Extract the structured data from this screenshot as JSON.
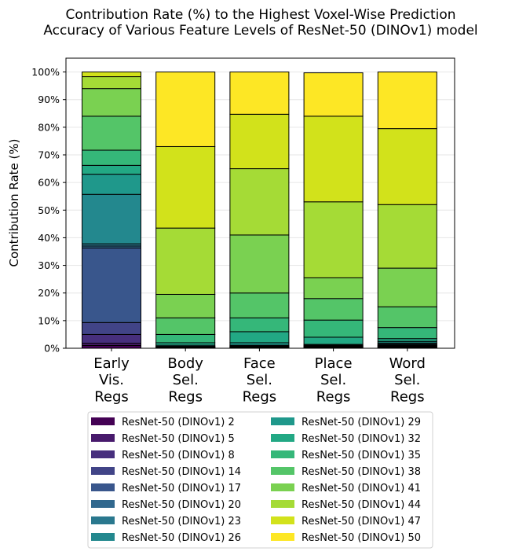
{
  "chart_data": {
    "type": "stacked_bar",
    "title": "Contribution Rate (%) to the Highest Voxel-Wise Prediction\nAccuracy of Various Feature Levels of ResNet-50 (DINOv1) model",
    "y_label": "Contribution Rate (%)",
    "categories": [
      "Early\nVis.\nRegs",
      "Body\nSel.\nRegs",
      "Face\nSel.\nRegs",
      "Place\nSel.\nRegs",
      "Word\nSel.\nRegs"
    ],
    "ylim": [
      0,
      105
    ],
    "yticks": [
      {
        "value": 0,
        "label": "0%"
      },
      {
        "value": 10,
        "label": "10%"
      },
      {
        "value": 20,
        "label": "20%"
      },
      {
        "value": 30,
        "label": "30%"
      },
      {
        "value": 40,
        "label": "40%"
      },
      {
        "value": 50,
        "label": "50%"
      },
      {
        "value": 60,
        "label": "60%"
      },
      {
        "value": 70,
        "label": "70%"
      },
      {
        "value": 80,
        "label": "80%"
      },
      {
        "value": 90,
        "label": "90%"
      },
      {
        "value": 100,
        "label": "100%"
      }
    ],
    "grid": true,
    "series": [
      {
        "name": "ResNet-50 (DINOv1) 2",
        "color": "#440154",
        "values": [
          1.0,
          0,
          0,
          0,
          0.2
        ]
      },
      {
        "name": "ResNet-50 (DINOv1) 5",
        "color": "#481a6c",
        "values": [
          0.8,
          0,
          0,
          0.1,
          0.2
        ]
      },
      {
        "name": "ResNet-50 (DINOv1) 8",
        "color": "#472f7d",
        "values": [
          3.2,
          0.1,
          0.1,
          0.1,
          0.2
        ]
      },
      {
        "name": "ResNet-50 (DINOv1) 14",
        "color": "#414487",
        "values": [
          4.3,
          0.1,
          0.1,
          0.1,
          0.2
        ]
      },
      {
        "name": "ResNet-50 (DINOv1) 17",
        "color": "#39568c",
        "values": [
          27.0,
          0.1,
          0.2,
          0.2,
          0.2
        ]
      },
      {
        "name": "ResNet-50 (DINOv1) 20",
        "color": "#31688e",
        "values": [
          0.7,
          0.1,
          0.2,
          0.2,
          0.2
        ]
      },
      {
        "name": "ResNet-50 (DINOv1) 23",
        "color": "#2a788e",
        "values": [
          0.8,
          0.1,
          0.2,
          0.2,
          0.3
        ]
      },
      {
        "name": "ResNet-50 (DINOv1) 26",
        "color": "#23888e",
        "values": [
          17.9,
          0.2,
          0.3,
          0.2,
          0.4
        ]
      },
      {
        "name": "ResNet-50 (DINOv1) 29",
        "color": "#1f988b",
        "values": [
          7.3,
          0.4,
          0.9,
          0.3,
          0.6
        ]
      },
      {
        "name": "ResNet-50 (DINOv1) 32",
        "color": "#22a884",
        "values": [
          3.2,
          0.9,
          4.0,
          2.6,
          1.0
        ]
      },
      {
        "name": "ResNet-50 (DINOv1) 35",
        "color": "#35b779",
        "values": [
          5.5,
          3.0,
          5.0,
          6.2,
          4.0
        ]
      },
      {
        "name": "ResNet-50 (DINOv1) 38",
        "color": "#54c568",
        "values": [
          12.3,
          6.0,
          9.0,
          7.8,
          7.5
        ]
      },
      {
        "name": "ResNet-50 (DINOv1) 41",
        "color": "#7ad151",
        "values": [
          10.0,
          8.5,
          21.0,
          7.5,
          14.0
        ]
      },
      {
        "name": "ResNet-50 (DINOv1) 44",
        "color": "#a5db36",
        "values": [
          4.3,
          24.0,
          24.0,
          27.5,
          23.0
        ]
      },
      {
        "name": "ResNet-50 (DINOv1) 47",
        "color": "#d2e21b",
        "values": [
          1.7,
          29.5,
          19.7,
          31.0,
          27.5
        ]
      },
      {
        "name": "ResNet-50 (DINOv1) 50",
        "color": "#fde725",
        "values": [
          0,
          27.0,
          15.3,
          15.7,
          20.5
        ]
      }
    ]
  }
}
